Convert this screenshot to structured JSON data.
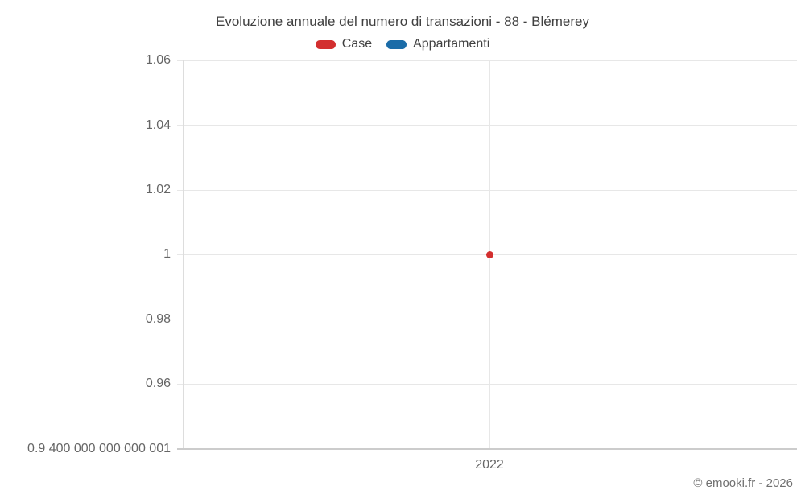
{
  "header": {
    "title": "Evoluzione annuale del numero di transazioni - 88 - Blémerey"
  },
  "legend": {
    "items": [
      {
        "label": "Case",
        "color": "#d32f2f"
      },
      {
        "label": "Appartamenti",
        "color": "#1b6ca8"
      }
    ]
  },
  "axes": {
    "y_tick_labels": [
      "1.06",
      "1.04",
      "1.02",
      "1",
      "0.98",
      "0.96",
      "0.9 400 000 000 000 001"
    ],
    "x_tick_labels": [
      "2022"
    ]
  },
  "footer": {
    "copyright": "© emooki.fr - 2026"
  },
  "chart_data": {
    "type": "scatter",
    "title": "Evoluzione annuale del numero di transazioni - 88 - Blémerey",
    "x": [
      2022
    ],
    "series": [
      {
        "name": "Case",
        "color": "#d32f2f",
        "values": [
          1
        ]
      },
      {
        "name": "Appartamenti",
        "color": "#1b6ca8",
        "values": []
      }
    ],
    "xlabel": "",
    "ylabel": "",
    "ylim": [
      0.94,
      1.06
    ],
    "y_ticks": [
      1.06,
      1.04,
      1.02,
      1,
      0.98,
      0.96,
      0.94
    ],
    "y_tick_label_anomaly": "0.9 400 000 000 000 001",
    "x_ticks": [
      2022
    ],
    "grid": true,
    "legend_position": "top",
    "legend_entries": [
      "Case",
      "Appartamenti"
    ]
  }
}
